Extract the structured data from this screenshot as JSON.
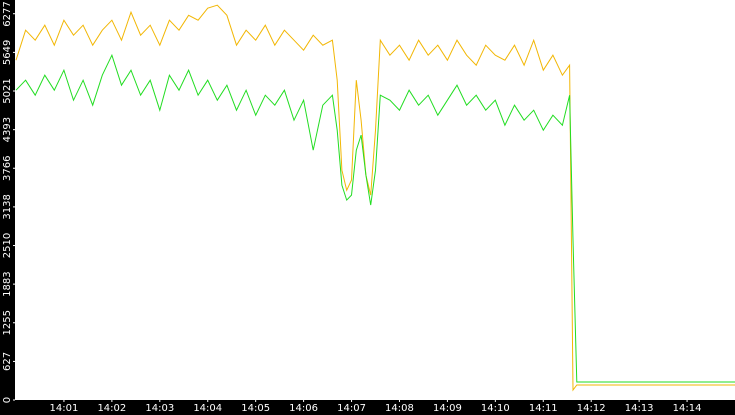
{
  "chart_data": {
    "type": "line",
    "x": [
      0,
      0.2,
      0.4,
      0.6,
      0.8,
      1.0,
      1.2,
      1.4,
      1.6,
      1.8,
      2.0,
      2.2,
      2.4,
      2.6,
      2.8,
      3.0,
      3.2,
      3.4,
      3.6,
      3.8,
      4.0,
      4.2,
      4.4,
      4.6,
      4.8,
      5.0,
      5.2,
      5.4,
      5.6,
      5.8,
      6.0,
      6.2,
      6.4,
      6.6,
      6.7,
      6.8,
      6.9,
      7.0,
      7.1,
      7.2,
      7.3,
      7.4,
      7.5,
      7.6,
      7.8,
      8.0,
      8.2,
      8.4,
      8.6,
      8.8,
      9.0,
      9.2,
      9.4,
      9.6,
      9.8,
      10.0,
      10.2,
      10.4,
      10.6,
      10.8,
      11.0,
      11.2,
      11.4,
      11.55,
      11.62,
      11.7,
      15
    ],
    "series": [
      {
        "color": "#f2b705",
        "values": [
          5522,
          6009,
          5846,
          6090,
          5765,
          6171,
          5928,
          6090,
          5765,
          6009,
          6171,
          5846,
          6301,
          5928,
          6090,
          5765,
          6171,
          6009,
          6252,
          6171,
          6366,
          6415,
          6252,
          5765,
          6009,
          5846,
          6090,
          5765,
          6009,
          5846,
          5684,
          5928,
          5765,
          5846,
          5197,
          3735,
          3410,
          3573,
          5197,
          4547,
          3654,
          3329,
          4385,
          5846,
          5603,
          5765,
          5522,
          5846,
          5603,
          5765,
          5522,
          5846,
          5603,
          5440,
          5765,
          5603,
          5522,
          5765,
          5440,
          5846,
          5359,
          5603,
          5278,
          5440,
          162,
          244,
          244
        ]
      },
      {
        "color": "#22dd22",
        "values": [
          5034,
          5197,
          4953,
          5278,
          5034,
          5359,
          4872,
          5197,
          4791,
          5278,
          5603,
          5116,
          5359,
          4953,
          5197,
          4710,
          5278,
          5034,
          5359,
          4953,
          5197,
          4872,
          5116,
          4710,
          5034,
          4628,
          4953,
          4791,
          5034,
          4547,
          4872,
          4060,
          4791,
          4953,
          4385,
          3492,
          3248,
          3329,
          4060,
          4304,
          3654,
          3167,
          3735,
          4953,
          4872,
          4710,
          5034,
          4791,
          4953,
          4628,
          4872,
          5116,
          4791,
          4953,
          4710,
          4872,
          4466,
          4791,
          4547,
          4710,
          4385,
          4628,
          4466,
          4953,
          2598,
          292,
          292
        ]
      }
    ],
    "xlim": [
      0,
      15
    ],
    "xticks": [
      {
        "value": 1,
        "label": "14:01"
      },
      {
        "value": 2,
        "label": "14:02"
      },
      {
        "value": 3,
        "label": "14:03"
      },
      {
        "value": 4,
        "label": "14:04"
      },
      {
        "value": 5,
        "label": "14:05"
      },
      {
        "value": 6,
        "label": "14:06"
      },
      {
        "value": 7,
        "label": "14:07"
      },
      {
        "value": 8,
        "label": "14:08"
      },
      {
        "value": 9,
        "label": "14:09"
      },
      {
        "value": 10,
        "label": "14:10"
      },
      {
        "value": 11,
        "label": "14:11"
      },
      {
        "value": 12,
        "label": "14:12"
      },
      {
        "value": 13,
        "label": "14:13"
      },
      {
        "value": 14,
        "label": "14:14"
      }
    ],
    "ylim": [
      0,
      6500
    ],
    "yticks": [
      0,
      627,
      1255,
      1883,
      2510,
      3138,
      3766,
      4393,
      5021,
      5649,
      6277
    ]
  }
}
